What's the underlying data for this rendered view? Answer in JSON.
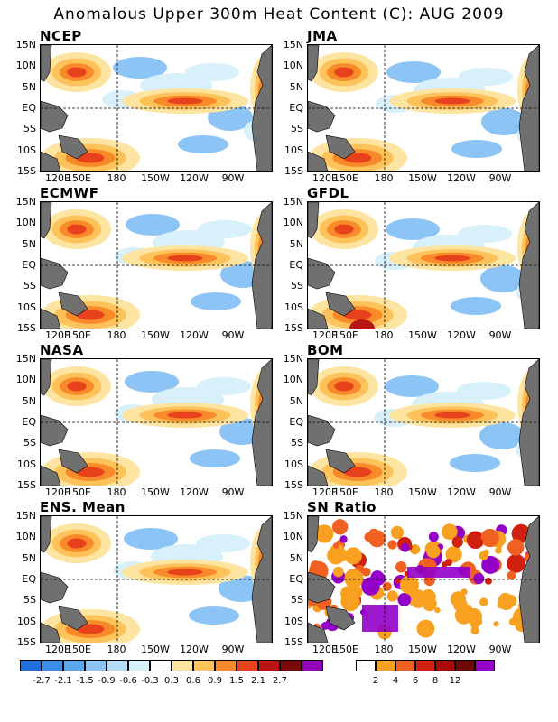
{
  "title": "Anomalous Upper 300m Heat Content (C): AUG 2009",
  "y_ticks": [
    "15N",
    "10N",
    "5N",
    "EQ",
    "5S",
    "10S",
    "15S"
  ],
  "x_ticks": [
    "120E",
    "150E",
    "180",
    "150W",
    "120W",
    "90W"
  ],
  "panels": [
    {
      "label": "NCEP",
      "type": "anomaly"
    },
    {
      "label": "JMA",
      "type": "anomaly"
    },
    {
      "label": "ECMWF",
      "type": "anomaly"
    },
    {
      "label": "GFDL",
      "type": "anomaly"
    },
    {
      "label": "NASA",
      "type": "anomaly"
    },
    {
      "label": "BOM",
      "type": "anomaly"
    },
    {
      "label": "ENS. Mean",
      "type": "anomaly"
    },
    {
      "label": "SN Ratio",
      "type": "ratio"
    }
  ],
  "anomaly_colorbar": {
    "colors": [
      "#1e6fd9",
      "#3a8ee8",
      "#5aa8f0",
      "#8cc4f5",
      "#b4dcf8",
      "#d7f0fa",
      "#ffffff",
      "#fde4a0",
      "#fdc25a",
      "#f88a2a",
      "#e8421c",
      "#b81414",
      "#7a0a0a",
      "#8f00b8"
    ],
    "labels": [
      "-2.7",
      "-2.1",
      "-1.5",
      "-0.9",
      "-0.6",
      "-0.3",
      "0.3",
      "0.6",
      "0.9",
      "1.5",
      "2.1",
      "2.7"
    ]
  },
  "ratio_colorbar": {
    "colors": [
      "#ffffff",
      "#f8a020",
      "#f06020",
      "#d02010",
      "#a80808",
      "#700808",
      "#9400c8"
    ],
    "labels": [
      "2",
      "4",
      "6",
      "8",
      "12"
    ]
  }
}
